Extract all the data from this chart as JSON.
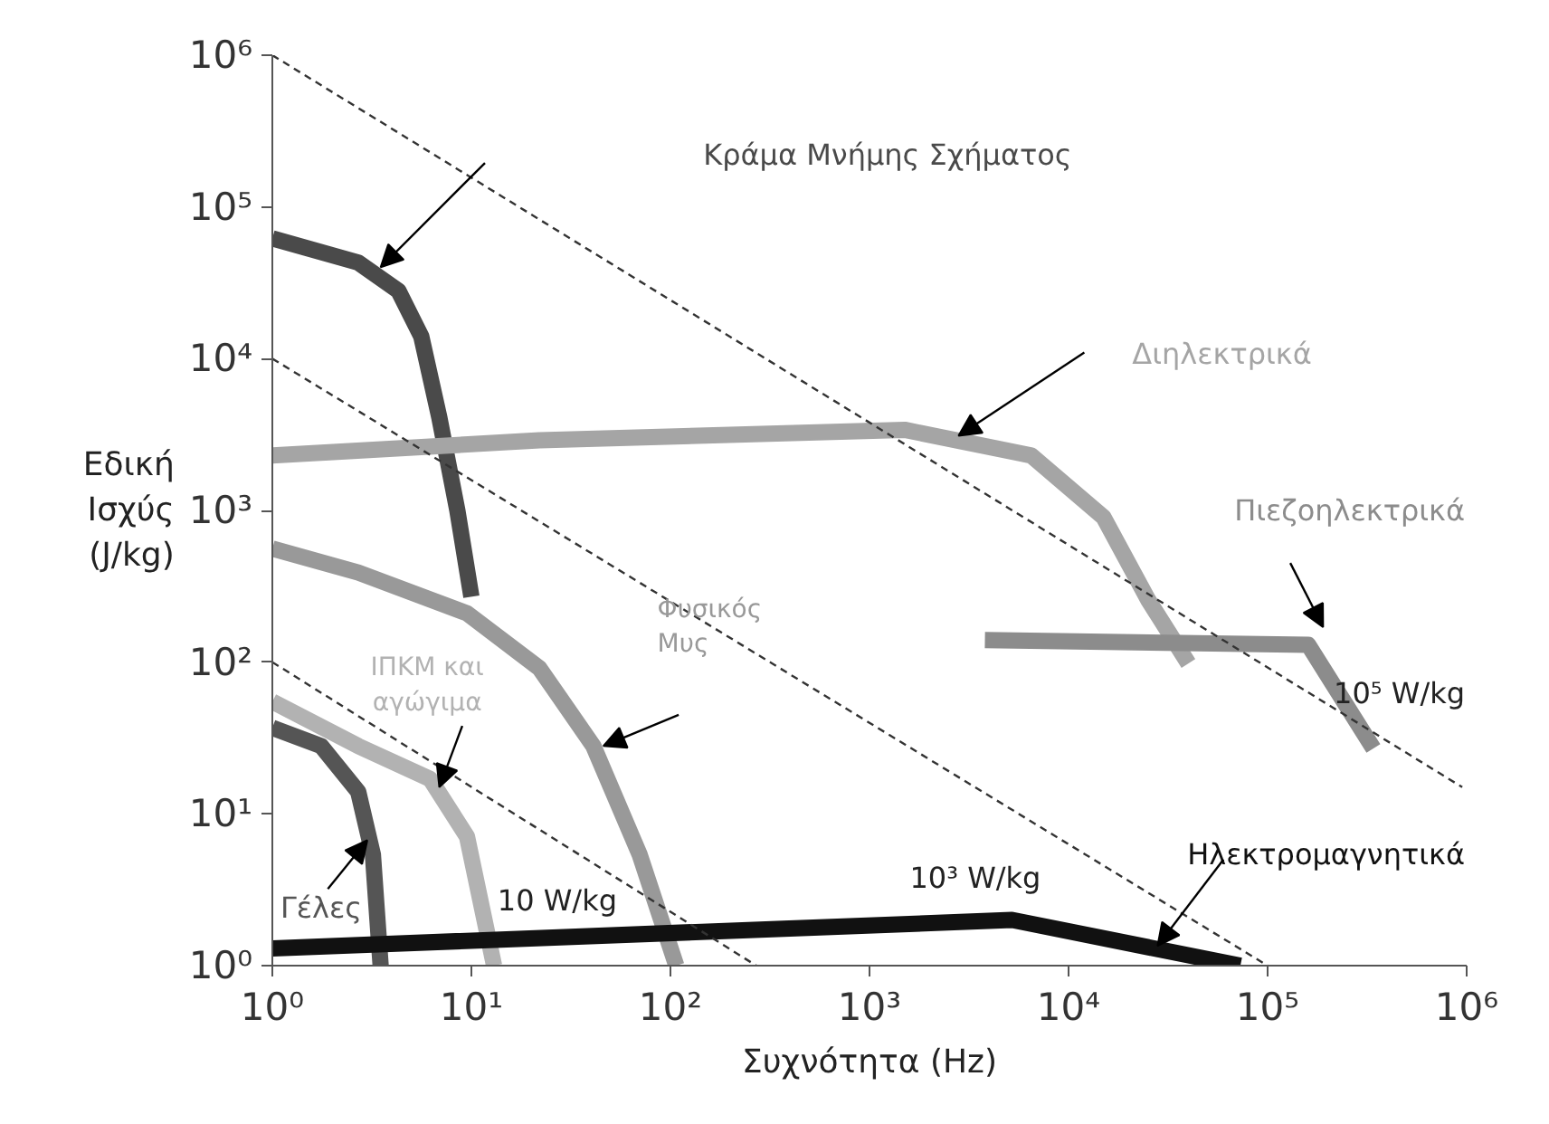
{
  "chart_data": {
    "type": "line",
    "xlabel": "Συχνότητα (Hz)",
    "ylabel": "Εδική\nΙσχύς\n(J/kg)",
    "log": "xy",
    "grid": false,
    "marker": "none",
    "xlim": [
      1,
      1000000
    ],
    "ylim": [
      1,
      1000000
    ],
    "xticks": [
      {
        "value": 1,
        "label": "10⁰"
      },
      {
        "value": 10,
        "label": "10¹"
      },
      {
        "value": 100,
        "label": "10²"
      },
      {
        "value": 1000,
        "label": "10³"
      },
      {
        "value": 10000,
        "label": "10⁴"
      },
      {
        "value": 100000,
        "label": "10⁵"
      },
      {
        "value": 1000000,
        "label": "10⁶"
      }
    ],
    "yticks": [
      {
        "value": 1,
        "label": "10⁰"
      },
      {
        "value": 10,
        "label": "10¹"
      },
      {
        "value": 100,
        "label": "10²"
      },
      {
        "value": 1000,
        "label": "10³"
      },
      {
        "value": 10000,
        "label": "10⁴"
      },
      {
        "value": 100000,
        "label": "10⁵"
      },
      {
        "value": 1000000,
        "label": "10⁶"
      }
    ],
    "series": [
      {
        "name": "Κράμα Μνήμης Σχήματος",
        "color": "#4a4a4a",
        "line_style": "solid",
        "x": [
          1,
          2.7,
          4.3,
          5.6,
          6.9,
          8.5,
          10
        ],
        "values": [
          62000,
          43000,
          28000,
          14000,
          4100,
          1000,
          270
        ]
      },
      {
        "name": "Διηλεκτρικά",
        "color": "#a5a5a5",
        "line_style": "solid",
        "x": [
          1,
          22,
          1500,
          6500,
          15000,
          25000,
          40000
        ],
        "values": [
          2300,
          2900,
          3400,
          2300,
          900,
          260,
          98
        ]
      },
      {
        "name": "Πιεζοηλεκτρικά",
        "color": "#8c8c8c",
        "line_style": "solid",
        "x": [
          3800,
          160000,
          340000
        ],
        "values": [
          140,
          130,
          27
        ]
      },
      {
        "name": "Φυσικός\nΜυς",
        "color": "#999999",
        "line_style": "solid",
        "x": [
          1,
          2.7,
          9.5,
          22,
          41,
          70,
          107
        ],
        "values": [
          560,
          390,
          210,
          91,
          28,
          5.4,
          1
        ]
      },
      {
        "name": "ΙΠΚΜ και\nαγώγιμα",
        "color": "#b2b2b2",
        "line_style": "solid",
        "x": [
          1,
          2.7,
          6.2,
          9.5,
          13
        ],
        "values": [
          55,
          28,
          17,
          7.1,
          1
        ]
      },
      {
        "name": "Γέλες",
        "color": "#555555",
        "line_style": "solid",
        "x": [
          1,
          1.76,
          2.7,
          3.2,
          3.5
        ],
        "values": [
          37,
          28,
          14,
          5.4,
          1
        ]
      },
      {
        "name": "Ηλεκτρομαγνητικά",
        "color": "#111111",
        "line_style": "solid",
        "x": [
          1,
          5200,
          73000
        ],
        "values": [
          1.3,
          2.0,
          1
        ]
      },
      {
        "color": "#333333",
        "line_style": "dashed",
        "x": [
          1,
          950000
        ],
        "values": [
          1000000,
          15
        ]
      },
      {
        "color": "#333333",
        "line_style": "dashed",
        "x": [
          1,
          100000
        ],
        "values": [
          10000,
          1
        ]
      },
      {
        "color": "#333333",
        "line_style": "dashed",
        "x": [
          1,
          270
        ],
        "values": [
          100,
          1
        ]
      }
    ],
    "annotations": [
      "10 W/kg",
      "10³ W/kg",
      "10⁵ W/kg"
    ]
  }
}
